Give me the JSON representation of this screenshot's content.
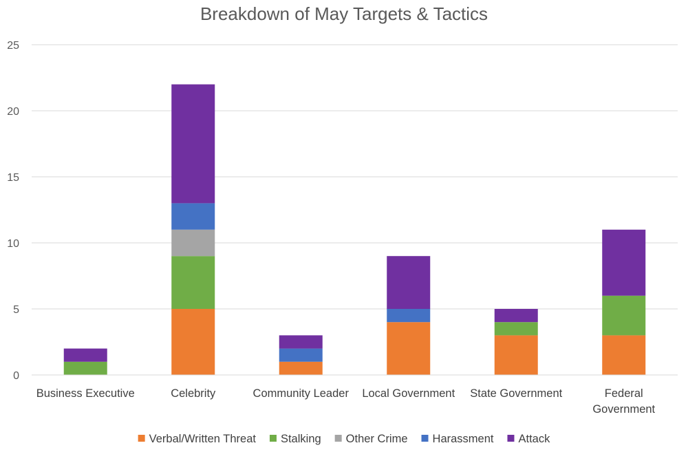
{
  "chart_data": {
    "type": "bar",
    "stacked": true,
    "title": "Breakdown of May Targets & Tactics",
    "xlabel": "",
    "ylabel": "",
    "ylim": [
      0,
      25
    ],
    "y_ticks": [
      0,
      5,
      10,
      15,
      20,
      25
    ],
    "grid": true,
    "legend_position": "bottom",
    "categories": [
      "Business Executive",
      "Celebrity",
      "Community Leader",
      "Local Government",
      "State Government",
      "Federal Government"
    ],
    "category_label_lines": [
      [
        "Business Executive"
      ],
      [
        "Celebrity"
      ],
      [
        "Community Leader"
      ],
      [
        "Local Government"
      ],
      [
        "State Government"
      ],
      [
        "Federal",
        "Government"
      ]
    ],
    "series": [
      {
        "name": "Verbal/Written Threat",
        "color": "#ED7D31",
        "values": [
          0,
          5,
          1,
          4,
          3,
          3
        ]
      },
      {
        "name": "Stalking",
        "color": "#70AD47",
        "values": [
          1,
          4,
          0,
          0,
          1,
          3
        ]
      },
      {
        "name": "Other Crime",
        "color": "#A5A5A5",
        "values": [
          0,
          2,
          0,
          0,
          0,
          0
        ]
      },
      {
        "name": "Harassment",
        "color": "#4472C4",
        "values": [
          0,
          2,
          1,
          1,
          0,
          0
        ]
      },
      {
        "name": "Attack",
        "color": "#7030A0",
        "values": [
          1,
          9,
          1,
          4,
          1,
          5
        ]
      }
    ]
  }
}
